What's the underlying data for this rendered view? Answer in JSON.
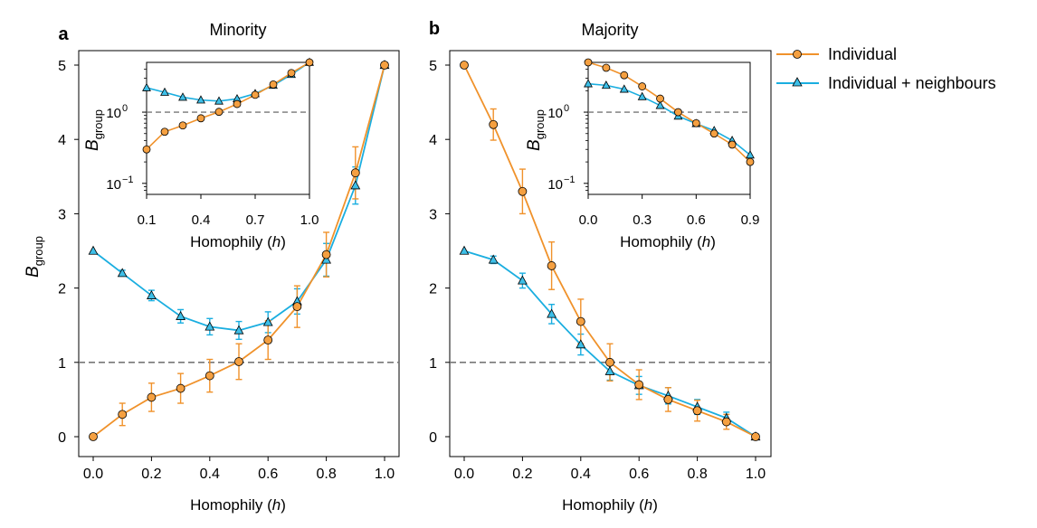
{
  "colors": {
    "individual": "#F5A041",
    "individual_line": "#F0922B",
    "neighbours": "#3DBFE8",
    "neighbours_line": "#1AAEE0",
    "reference": "#777777"
  },
  "legend": {
    "position": "top-right",
    "entries": [
      {
        "key": "individual",
        "label": "Individual",
        "marker": "circle"
      },
      {
        "key": "neighbours",
        "label": "Individual + neighbours",
        "marker": "triangle"
      }
    ]
  },
  "ylabel_main": "B",
  "ylabel_sub": "group",
  "inset_ylabel_main": "B",
  "inset_ylabel_sub": "group",
  "xlabel_prefix": "Homophily (",
  "xlabel_var": "h",
  "xlabel_suffix": ")",
  "chart_data": [
    {
      "id": "a",
      "letter": "a",
      "title": "Minority",
      "type": "line",
      "xlim": [
        0,
        1
      ],
      "ylim": [
        0,
        5
      ],
      "xticks": [
        "0.0",
        "0.2",
        "0.4",
        "0.6",
        "0.8",
        "1.0"
      ],
      "yticks": [
        "0",
        "1",
        "2",
        "3",
        "4",
        "5"
      ],
      "reference_line": 1,
      "x": [
        0.0,
        0.1,
        0.2,
        0.3,
        0.4,
        0.5,
        0.6,
        0.7,
        0.8,
        0.9,
        1.0
      ],
      "series": [
        {
          "key": "individual",
          "name": "Individual",
          "values": [
            0.0,
            0.3,
            0.53,
            0.65,
            0.82,
            1.01,
            1.3,
            1.75,
            2.45,
            3.55,
            5.0
          ],
          "err": [
            0.0,
            0.15,
            0.19,
            0.2,
            0.22,
            0.24,
            0.26,
            0.28,
            0.3,
            0.35,
            0.0
          ]
        },
        {
          "key": "neighbours",
          "name": "Individual + neighbours",
          "values": [
            2.5,
            2.2,
            1.9,
            1.62,
            1.48,
            1.43,
            1.54,
            1.82,
            2.38,
            3.38,
            5.0
          ],
          "err": [
            0.0,
            0.04,
            0.07,
            0.09,
            0.11,
            0.12,
            0.14,
            0.17,
            0.22,
            0.25,
            0.0
          ]
        }
      ],
      "inset": {
        "type": "line",
        "yscale": "log",
        "xlim": [
          0.1,
          1.0
        ],
        "ylim": [
          0.07,
          5.0
        ],
        "xticks": [
          "0.1",
          "0.4",
          "0.7",
          "1.0"
        ],
        "xtick_values": [
          0.1,
          0.4,
          0.7,
          1.0
        ],
        "yticks": [
          "10",
          "10"
        ],
        "ytick_exponents": [
          "−1",
          "0"
        ],
        "ytick_values": [
          0.1,
          1.0
        ],
        "x": [
          0.1,
          0.2,
          0.3,
          0.4,
          0.5,
          0.6,
          0.7,
          0.8,
          0.9,
          1.0
        ],
        "series": [
          {
            "key": "individual",
            "values": [
              0.3,
              0.53,
              0.65,
              0.82,
              1.01,
              1.3,
              1.75,
              2.45,
              3.55,
              5.0
            ]
          },
          {
            "key": "neighbours",
            "values": [
              2.2,
              1.9,
              1.62,
              1.48,
              1.43,
              1.54,
              1.82,
              2.38,
              3.38,
              5.0
            ]
          }
        ]
      }
    },
    {
      "id": "b",
      "letter": "b",
      "title": "Majority",
      "type": "line",
      "xlim": [
        0,
        1
      ],
      "ylim": [
        0,
        5
      ],
      "xticks": [
        "0.0",
        "0.2",
        "0.4",
        "0.6",
        "0.8",
        "1.0"
      ],
      "yticks": [
        "0",
        "1",
        "2",
        "3",
        "4",
        "5"
      ],
      "reference_line": 1,
      "x": [
        0.0,
        0.1,
        0.2,
        0.3,
        0.4,
        0.5,
        0.6,
        0.7,
        0.8,
        0.9,
        1.0
      ],
      "series": [
        {
          "key": "individual",
          "name": "Individual",
          "values": [
            5.0,
            4.2,
            3.3,
            2.3,
            1.55,
            1.0,
            0.7,
            0.5,
            0.35,
            0.2,
            0.0
          ],
          "err": [
            0.0,
            0.21,
            0.3,
            0.32,
            0.3,
            0.25,
            0.2,
            0.16,
            0.14,
            0.1,
            0.0
          ]
        },
        {
          "key": "neighbours",
          "name": "Individual + neighbours",
          "values": [
            2.5,
            2.38,
            2.1,
            1.65,
            1.24,
            0.88,
            0.69,
            0.55,
            0.4,
            0.25,
            0.0
          ],
          "err": [
            0.0,
            0.05,
            0.1,
            0.13,
            0.14,
            0.12,
            0.12,
            0.11,
            0.1,
            0.08,
            0.0
          ]
        }
      ],
      "inset": {
        "type": "line",
        "yscale": "log",
        "xlim": [
          0.0,
          0.9
        ],
        "ylim": [
          0.07,
          5.0
        ],
        "xticks": [
          "0.0",
          "0.3",
          "0.6",
          "0.9"
        ],
        "xtick_values": [
          0.0,
          0.3,
          0.6,
          0.9
        ],
        "yticks": [
          "10",
          "10"
        ],
        "ytick_exponents": [
          "−1",
          "0"
        ],
        "ytick_values": [
          0.1,
          1.0
        ],
        "x": [
          0.0,
          0.1,
          0.2,
          0.3,
          0.4,
          0.5,
          0.6,
          0.7,
          0.8,
          0.9
        ],
        "series": [
          {
            "key": "individual",
            "values": [
              5.0,
              4.2,
              3.3,
              2.3,
              1.55,
              1.0,
              0.7,
              0.5,
              0.35,
              0.2
            ]
          },
          {
            "key": "neighbours",
            "values": [
              2.5,
              2.38,
              2.1,
              1.65,
              1.24,
              0.88,
              0.69,
              0.55,
              0.4,
              0.25
            ]
          }
        ]
      }
    }
  ]
}
